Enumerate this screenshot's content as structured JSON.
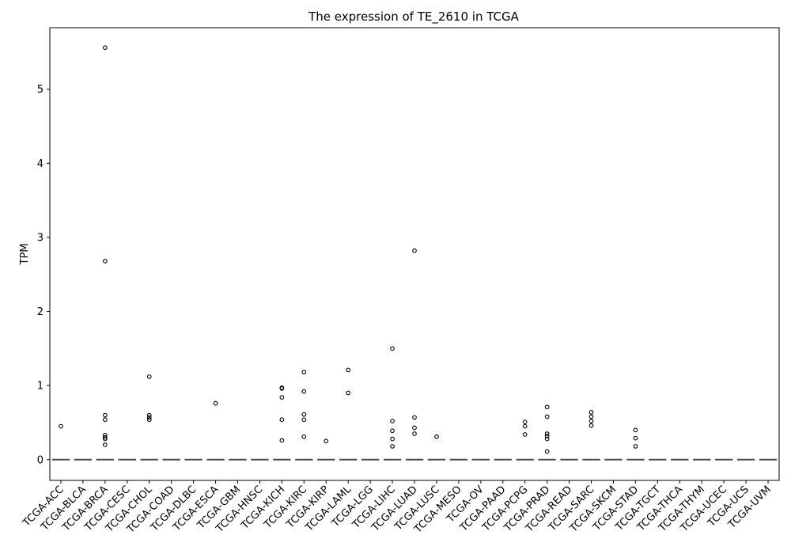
{
  "chart_data": {
    "type": "box",
    "title": "The expression of TE_2610 in TCGA",
    "xlabel": "",
    "ylabel": "TPM",
    "ylim": [
      -0.28,
      5.83
    ],
    "yticks": [
      0,
      1,
      2,
      3,
      4,
      5
    ],
    "grid": false,
    "legend": "none",
    "colors": {
      "median_line": "#4a4a4a",
      "outlier_edge": "#000000",
      "axes": "#000000"
    },
    "categories": [
      "TCGA-ACC",
      "TCGA-BLCA",
      "TCGA-BRCA",
      "TCGA-CESC",
      "TCGA-CHOL",
      "TCGA-COAD",
      "TCGA-DLBC",
      "TCGA-ESCA",
      "TCGA-GBM",
      "TCGA-HNSC",
      "TCGA-KICH",
      "TCGA-KIRC",
      "TCGA-KIRP",
      "TCGA-LAML",
      "TCGA-LGG",
      "TCGA-LIHC",
      "TCGA-LUAD",
      "TCGA-LUSC",
      "TCGA-MESO",
      "TCGA-OV",
      "TCGA-PAAD",
      "TCGA-PCPG",
      "TCGA-PRAD",
      "TCGA-READ",
      "TCGA-SARC",
      "TCGA-SKCM",
      "TCGA-STAD",
      "TCGA-TGCT",
      "TCGA-THCA",
      "TCGA-THYM",
      "TCGA-UCEC",
      "TCGA-UCS",
      "TCGA-UVM"
    ],
    "medians": [
      0,
      0,
      0,
      0,
      0,
      0,
      0,
      0,
      0,
      0,
      0,
      0,
      0,
      0,
      0,
      0,
      0,
      0,
      0,
      0,
      0,
      0,
      0,
      0,
      0,
      0,
      0,
      0,
      0,
      0,
      0,
      0,
      0
    ],
    "outliers": [
      [
        0.45
      ],
      [],
      [
        5.56,
        2.68,
        0.6,
        0.54,
        0.33,
        0.3,
        0.28,
        0.2
      ],
      [],
      [
        1.12,
        0.6,
        0.57,
        0.54
      ],
      [],
      [],
      [
        0.76
      ],
      [],
      [],
      [
        0.97,
        0.96,
        0.84,
        0.54,
        0.26
      ],
      [
        1.18,
        0.92,
        0.61,
        0.54,
        0.31
      ],
      [
        0.25
      ],
      [
        1.21,
        0.9
      ],
      [],
      [
        1.5,
        0.52,
        0.39,
        0.28,
        0.18
      ],
      [
        2.82,
        0.57,
        0.43,
        0.35
      ],
      [
        0.31
      ],
      [],
      [],
      [],
      [
        0.51,
        0.45,
        0.34
      ],
      [
        0.71,
        0.58,
        0.35,
        0.32,
        0.28,
        0.11
      ],
      [],
      [
        0.64,
        0.58,
        0.52,
        0.46
      ],
      [],
      [
        0.4,
        0.29,
        0.18
      ],
      [],
      [],
      [],
      [],
      [],
      []
    ]
  }
}
